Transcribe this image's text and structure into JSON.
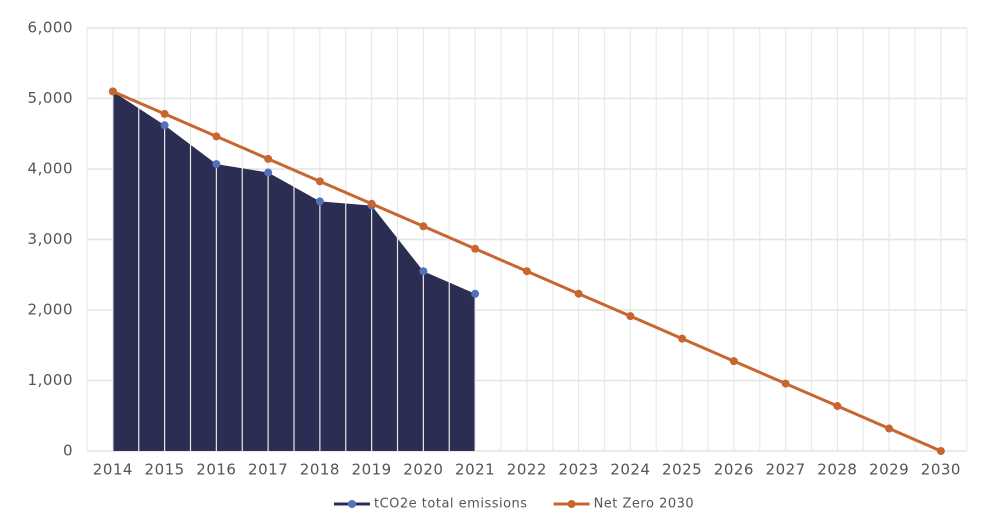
{
  "chart_data": {
    "type": "area-line",
    "categories": [
      "2014",
      "2015",
      "2016",
      "2017",
      "2018",
      "2019",
      "2020",
      "2021",
      "2022",
      "2023",
      "2024",
      "2025",
      "2026",
      "2027",
      "2028",
      "2029",
      "2030"
    ],
    "series": [
      {
        "name": "tCO2e total emissions",
        "color": "#2b2d52",
        "marker_color": "#5470b8",
        "kind": "area",
        "values": [
          5100,
          4620,
          4070,
          3950,
          3540,
          3480,
          2550,
          2230,
          null,
          null,
          null,
          null,
          null,
          null,
          null,
          null,
          null
        ]
      },
      {
        "name": "Net Zero 2030",
        "color": "#c8662f",
        "marker_color": "#c8662f",
        "kind": "line",
        "values": [
          5100,
          4781.25,
          4462.5,
          4143.75,
          3825,
          3506.25,
          3187.5,
          2868.75,
          2550,
          2231.25,
          1912.5,
          1593.75,
          1275,
          956.25,
          637.5,
          318.75,
          0
        ]
      }
    ],
    "ylim": [
      0,
      6000
    ],
    "yticks": [
      0,
      {
        "value": 1000,
        "label": "1,000"
      },
      {
        "value": 2000,
        "label": "2,000"
      },
      {
        "value": 3000,
        "label": "3,000"
      },
      {
        "value": 4000,
        "label": "4,000"
      },
      {
        "value": 5000,
        "label": "5,000"
      },
      {
        "value": 6000,
        "label": "6,000"
      }
    ],
    "grid": true,
    "legend": "bottom"
  }
}
